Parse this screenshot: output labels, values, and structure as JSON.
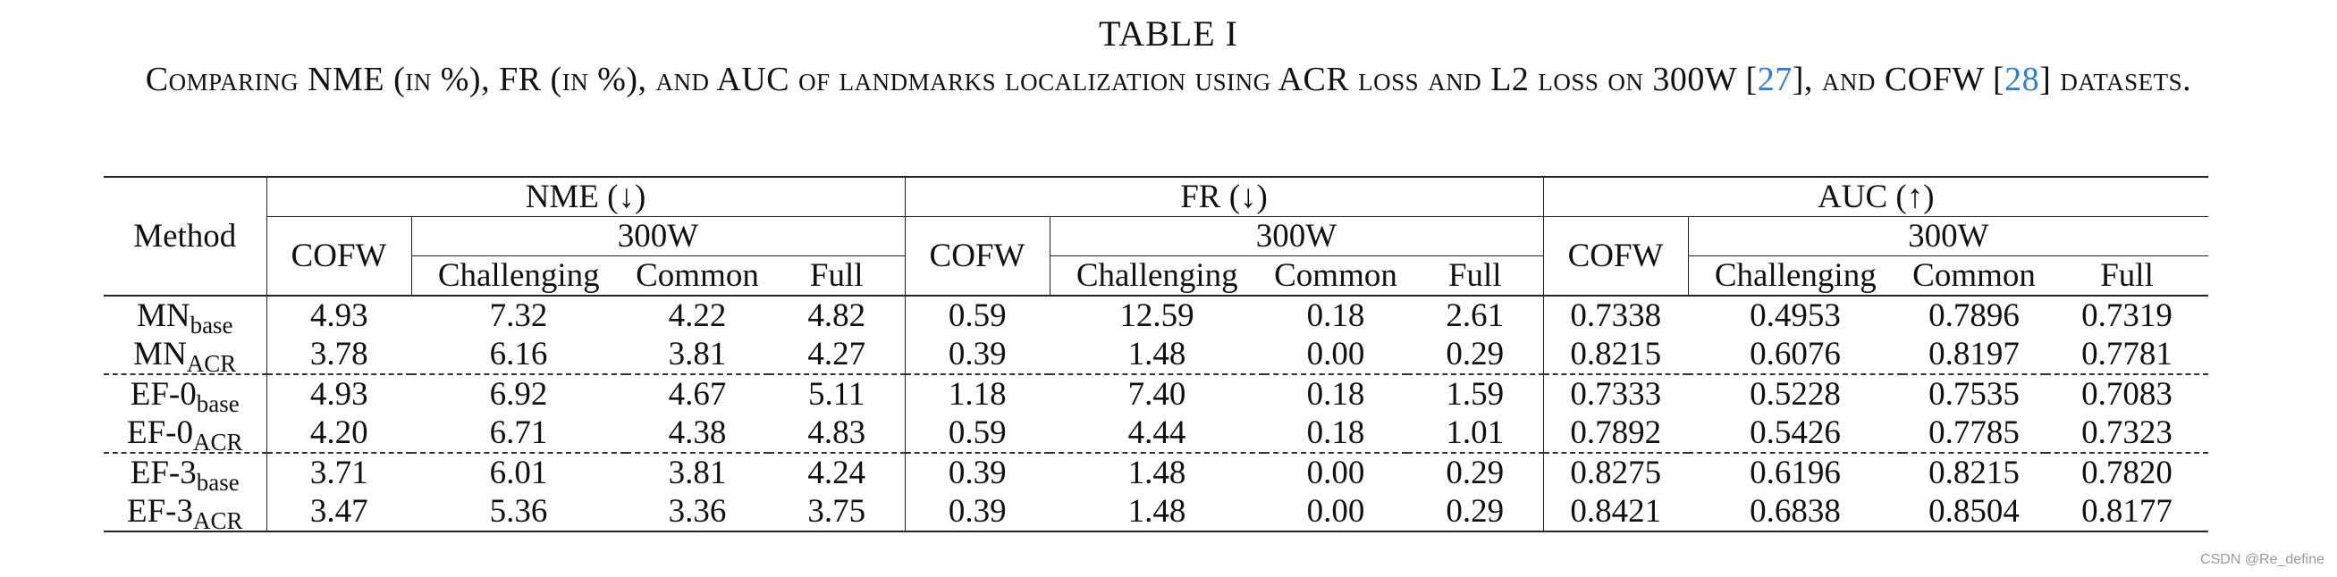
{
  "caption": {
    "title": "TABLE I",
    "text_before_ref1": "Comparing NME (in %), FR (in %), and AUC of landmarks localization using ACR loss and L2 loss on 300W [",
    "ref1": "27",
    "text_between_refs": "], and COFW [",
    "ref2": "28",
    "text_after_ref2": "] datasets."
  },
  "table": {
    "method_header": "Method",
    "groups": [
      "NME (↓)",
      "FR (↓)",
      "AUC (↑)"
    ],
    "cofw_label": "COFW",
    "w300_label": "300W",
    "subcolumns": [
      "Challenging",
      "Common",
      "Full"
    ],
    "rows": [
      {
        "name": "MN",
        "sub": "base",
        "values": [
          "4.93",
          "7.32",
          "4.22",
          "4.82",
          "0.59",
          "12.59",
          "0.18",
          "2.61",
          "0.7338",
          "0.4953",
          "0.7896",
          "0.7319"
        ]
      },
      {
        "name": "MN",
        "sub": "ACR",
        "values": [
          "3.78",
          "6.16",
          "3.81",
          "4.27",
          "0.39",
          "1.48",
          "0.00",
          "0.29",
          "0.8215",
          "0.6076",
          "0.8197",
          "0.7781"
        ]
      },
      {
        "name": "EF-0",
        "sub": "base",
        "values": [
          "4.93",
          "6.92",
          "4.67",
          "5.11",
          "1.18",
          "7.40",
          "0.18",
          "1.59",
          "0.7333",
          "0.5228",
          "0.7535",
          "0.7083"
        ]
      },
      {
        "name": "EF-0",
        "sub": "ACR",
        "values": [
          "4.20",
          "6.71",
          "4.38",
          "4.83",
          "0.59",
          "4.44",
          "0.18",
          "1.01",
          "0.7892",
          "0.5426",
          "0.7785",
          "0.7323"
        ]
      },
      {
        "name": "EF-3",
        "sub": "base",
        "values": [
          "3.71",
          "6.01",
          "3.81",
          "4.24",
          "0.39",
          "1.48",
          "0.00",
          "0.29",
          "0.8275",
          "0.6196",
          "0.8215",
          "0.7820"
        ]
      },
      {
        "name": "EF-3",
        "sub": "ACR",
        "values": [
          "3.47",
          "5.36",
          "3.36",
          "3.75",
          "0.39",
          "1.48",
          "0.00",
          "0.29",
          "0.8421",
          "0.6838",
          "0.8504",
          "0.8177"
        ]
      }
    ]
  },
  "watermark": "CSDN @Re_define"
}
